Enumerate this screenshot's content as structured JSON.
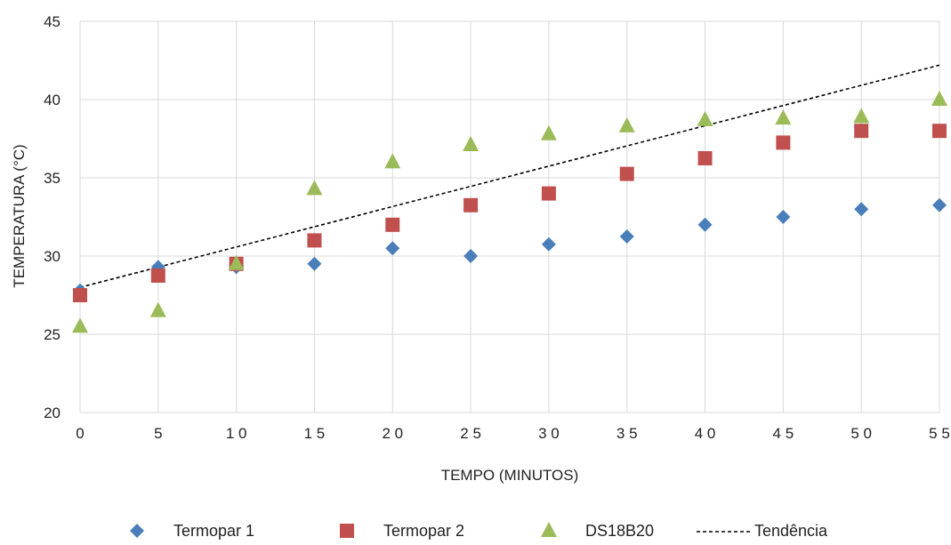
{
  "chart_data": {
    "type": "scatter",
    "title": "",
    "xlabel": "TEMPO (MINUTOS)",
    "ylabel": "TEMPERATURA (°C)",
    "xlim": [
      0,
      55
    ],
    "ylim": [
      20,
      45
    ],
    "xticks": [
      0,
      5,
      10,
      15,
      20,
      25,
      30,
      35,
      40,
      45,
      50,
      55
    ],
    "xtick_labels": [
      "0",
      "5",
      "1 0",
      "1 5",
      "2 0",
      "2 5",
      "3 0",
      "3 5",
      "4 0",
      "4 5",
      "5 0",
      "5 5"
    ],
    "yticks": [
      20,
      25,
      30,
      35,
      40,
      45
    ],
    "grid": true,
    "legend_position": "bottom",
    "series": [
      {
        "name": "Termopar 1",
        "marker": "diamond",
        "color": "#4a7ebb",
        "x": [
          0,
          5,
          10,
          15,
          20,
          25,
          30,
          35,
          40,
          45,
          50,
          55
        ],
        "y": [
          27.8,
          29.3,
          29.3,
          29.5,
          30.5,
          30.0,
          30.75,
          31.25,
          32.0,
          32.5,
          33.0,
          33.25
        ]
      },
      {
        "name": "Termopar 2",
        "marker": "square",
        "color": "#c0504d",
        "x": [
          0,
          5,
          10,
          15,
          20,
          25,
          30,
          35,
          40,
          45,
          50,
          55
        ],
        "y": [
          27.5,
          28.75,
          29.5,
          31.0,
          32.0,
          33.25,
          34.0,
          35.25,
          36.25,
          37.25,
          38.0,
          38.0
        ]
      },
      {
        "name": "DS18B20",
        "marker": "triangle",
        "color": "#9bbb59",
        "x": [
          0,
          5,
          10,
          15,
          20,
          25,
          30,
          35,
          40,
          45,
          50,
          55
        ],
        "y": [
          25.5,
          26.5,
          29.5,
          34.3,
          36.0,
          37.1,
          37.8,
          38.3,
          38.7,
          38.8,
          38.9,
          40.0
        ]
      },
      {
        "name": "Tendência",
        "marker": "dashed-line",
        "color": "#000000",
        "x": [
          0,
          55
        ],
        "y": [
          28.0,
          42.2
        ]
      }
    ]
  }
}
